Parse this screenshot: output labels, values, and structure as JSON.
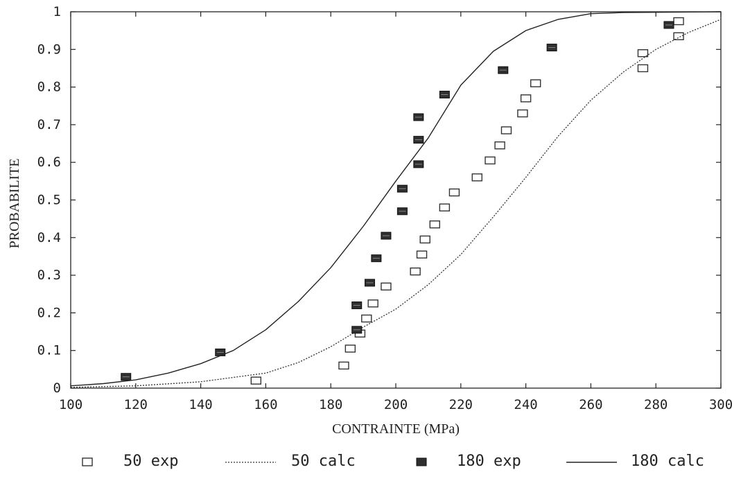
{
  "chart_data": {
    "type": "scatter",
    "xlabel": "CONTRAINTE (MPa)",
    "ylabel": "PROBABILITE",
    "xlim": [
      100,
      300
    ],
    "ylim": [
      0,
      1
    ],
    "x_ticks": [
      100,
      120,
      140,
      160,
      180,
      200,
      220,
      240,
      260,
      280,
      300
    ],
    "x_tick_labels": [
      "100",
      "120",
      "140",
      "160",
      "180",
      "200",
      "220",
      "240",
      "260",
      "280",
      "300"
    ],
    "y_ticks": [
      0,
      0.1,
      0.2,
      0.3,
      0.4,
      0.5,
      0.6,
      0.7,
      0.8,
      0.9,
      1
    ],
    "y_tick_labels": [
      "0",
      "0.1",
      "0.2",
      "0.3",
      "0.4",
      "0.5",
      "0.6",
      "0.7",
      "0.8",
      "0.9",
      "1"
    ],
    "grid": false,
    "legend_position": "bottom",
    "series": [
      {
        "name": "50 exp",
        "kind": "marker-open",
        "color": "#333333",
        "points": [
          [
            157,
            0.02
          ],
          [
            184,
            0.06
          ],
          [
            186,
            0.105
          ],
          [
            189,
            0.145
          ],
          [
            191,
            0.185
          ],
          [
            193,
            0.225
          ],
          [
            197,
            0.27
          ],
          [
            206,
            0.31
          ],
          [
            208,
            0.355
          ],
          [
            209,
            0.395
          ],
          [
            212,
            0.435
          ],
          [
            215,
            0.48
          ],
          [
            218,
            0.52
          ],
          [
            225,
            0.56
          ],
          [
            229,
            0.605
          ],
          [
            232,
            0.645
          ],
          [
            234,
            0.685
          ],
          [
            239,
            0.73
          ],
          [
            240,
            0.77
          ],
          [
            243,
            0.81
          ],
          [
            276,
            0.85
          ],
          [
            276,
            0.89
          ],
          [
            287,
            0.935
          ],
          [
            287,
            0.975
          ]
        ]
      },
      {
        "name": "50 calc",
        "kind": "line-dotted",
        "color": "#333333",
        "points": [
          [
            100,
            0.002
          ],
          [
            120,
            0.006
          ],
          [
            140,
            0.017
          ],
          [
            160,
            0.04
          ],
          [
            170,
            0.068
          ],
          [
            180,
            0.11
          ],
          [
            190,
            0.162
          ],
          [
            200,
            0.21
          ],
          [
            210,
            0.275
          ],
          [
            220,
            0.355
          ],
          [
            230,
            0.455
          ],
          [
            240,
            0.56
          ],
          [
            250,
            0.67
          ],
          [
            260,
            0.765
          ],
          [
            270,
            0.84
          ],
          [
            280,
            0.9
          ],
          [
            290,
            0.945
          ],
          [
            300,
            0.98
          ]
        ]
      },
      {
        "name": "180 exp",
        "kind": "marker-filled",
        "color": "#333333",
        "points": [
          [
            117,
            0.03
          ],
          [
            146,
            0.095
          ],
          [
            188,
            0.155
          ],
          [
            188,
            0.22
          ],
          [
            192,
            0.28
          ],
          [
            194,
            0.345
          ],
          [
            197,
            0.405
          ],
          [
            202,
            0.47
          ],
          [
            202,
            0.53
          ],
          [
            207,
            0.595
          ],
          [
            207,
            0.66
          ],
          [
            207,
            0.72
          ],
          [
            215,
            0.78
          ],
          [
            233,
            0.845
          ],
          [
            248,
            0.905
          ],
          [
            284,
            0.965
          ]
        ]
      },
      {
        "name": "180 calc",
        "kind": "line-solid",
        "color": "#222222",
        "points": [
          [
            100,
            0.006
          ],
          [
            110,
            0.012
          ],
          [
            120,
            0.022
          ],
          [
            130,
            0.04
          ],
          [
            140,
            0.065
          ],
          [
            150,
            0.1
          ],
          [
            160,
            0.155
          ],
          [
            170,
            0.23
          ],
          [
            180,
            0.32
          ],
          [
            190,
            0.43
          ],
          [
            200,
            0.55
          ],
          [
            210,
            0.665
          ],
          [
            220,
            0.805
          ],
          [
            230,
            0.895
          ],
          [
            240,
            0.95
          ],
          [
            250,
            0.98
          ],
          [
            260,
            0.995
          ],
          [
            270,
            0.998
          ],
          [
            300,
            1.0
          ]
        ]
      }
    ]
  }
}
